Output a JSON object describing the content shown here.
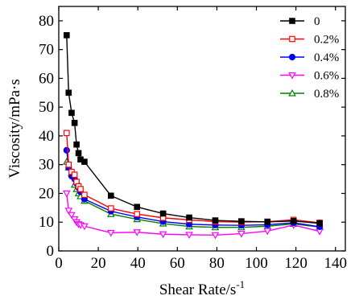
{
  "chart_data": {
    "type": "line",
    "xlabel": "Shear Rate/s",
    "xlabel_sup": "-1",
    "ylabel": "Viscosity/mPa·s",
    "xlim": [
      0,
      145
    ],
    "ylim": [
      0,
      85
    ],
    "xticks": [
      0,
      20,
      40,
      60,
      80,
      100,
      120,
      140
    ],
    "yticks": [
      0,
      10,
      20,
      30,
      40,
      50,
      60,
      70,
      80
    ],
    "grid": false,
    "legend_position": "top-right",
    "series": [
      {
        "name": "0",
        "color": "#000000",
        "marker": "filled-square",
        "x": [
          4,
          5,
          6.5,
          8,
          9,
          10,
          11,
          13,
          26.4,
          39.6,
          52.8,
          66,
          79.2,
          92.4,
          105.6,
          118.8,
          132
        ],
        "y": [
          75,
          55,
          48,
          44.5,
          37,
          34,
          31.8,
          31,
          19.2,
          15.3,
          13,
          11.6,
          10.6,
          10.3,
          10.1,
          10.4,
          9.6
        ]
      },
      {
        "name": "0.2%",
        "color": "#ff0000",
        "marker": "open-square",
        "x": [
          4,
          5,
          6.5,
          8,
          9,
          10,
          11,
          13,
          26.4,
          39.6,
          52.8,
          66,
          79.2,
          92.4,
          105.6,
          118.8,
          132
        ],
        "y": [
          41,
          30,
          27.5,
          26.5,
          24,
          22.5,
          21.5,
          19.5,
          14.8,
          12.8,
          11.5,
          10.8,
          10.2,
          10,
          10.2,
          10.8,
          9.8
        ]
      },
      {
        "name": "0.4%",
        "color": "#0000ff",
        "marker": "filled-circle",
        "x": [
          4,
          5,
          6.5,
          8,
          9,
          10,
          11,
          13,
          26.4,
          39.6,
          52.8,
          66,
          79.2,
          92.4,
          105.6,
          118.8,
          132
        ],
        "y": [
          35,
          29,
          26,
          25,
          23.5,
          22,
          20.5,
          18,
          13.8,
          11.8,
          10.2,
          9.3,
          9,
          8.9,
          9.1,
          9.8,
          8.4
        ]
      },
      {
        "name": "0.6%",
        "color": "#ff00ff",
        "marker": "open-triangle-down",
        "x": [
          4,
          5,
          6.5,
          8,
          9,
          10,
          11,
          13,
          26.4,
          39.6,
          52.8,
          66,
          79.2,
          92.4,
          105.6,
          118.8,
          132
        ],
        "y": [
          20,
          14,
          12.5,
          11,
          10,
          9.3,
          9,
          8.6,
          6.3,
          6.5,
          5.8,
          5.6,
          5.5,
          6,
          6.9,
          9,
          6.8
        ]
      },
      {
        "name": "0.8%",
        "color": "#008000",
        "marker": "open-triangle-up",
        "x": [
          4,
          5,
          6.5,
          8,
          9,
          10,
          11,
          13,
          26.4,
          39.6,
          52.8,
          66,
          79.2,
          92.4,
          105.6,
          118.8,
          132
        ],
        "y": [
          31,
          29,
          27,
          23,
          21.5,
          20,
          19,
          17.4,
          12.8,
          11,
          9.5,
          8.5,
          8.2,
          8.2,
          8.6,
          9.4,
          8.3
        ]
      }
    ]
  }
}
